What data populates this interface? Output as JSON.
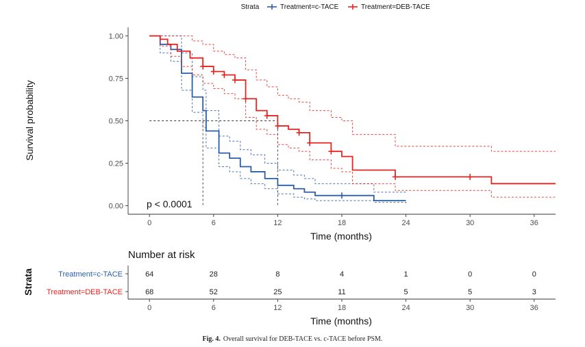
{
  "legend": {
    "title": "Strata",
    "items": [
      {
        "label": "Treatment=c-TACE",
        "color": "#2a5da8"
      },
      {
        "label": "Treatment=DEB-TACE",
        "color": "#e8231f"
      }
    ]
  },
  "chart_data": {
    "type": "line",
    "subtype": "kaplan-meier",
    "xlabel": "Time (months)",
    "ylabel": "Survival probability",
    "xlim": [
      -2,
      38
    ],
    "ylim": [
      -0.05,
      1.05
    ],
    "xticks": [
      0,
      6,
      12,
      18,
      24,
      30,
      36
    ],
    "yticks": [
      0.0,
      0.25,
      0.5,
      0.75,
      1.0
    ],
    "ytick_labels": [
      "0.00",
      "0.25",
      "0.50",
      "0.75",
      "1.00"
    ],
    "grid": false,
    "pvalue": "p < 0.0001",
    "median_reference": {
      "y": 0.5,
      "x": [
        5,
        12
      ]
    },
    "series": [
      {
        "name": "Treatment=c-TACE",
        "color": "#2a5da8",
        "steps": [
          [
            0,
            1.0
          ],
          [
            1,
            0.95
          ],
          [
            2,
            0.92
          ],
          [
            3,
            0.78
          ],
          [
            4,
            0.64
          ],
          [
            5,
            0.56
          ],
          [
            5.3,
            0.44
          ],
          [
            6.5,
            0.31
          ],
          [
            7.5,
            0.28
          ],
          [
            8.5,
            0.23
          ],
          [
            9.5,
            0.2
          ],
          [
            10.8,
            0.16
          ],
          [
            12,
            0.12
          ],
          [
            13.5,
            0.1
          ],
          [
            14.5,
            0.08
          ],
          [
            15.5,
            0.06
          ],
          [
            21,
            0.03
          ],
          [
            24,
            0.03
          ]
        ],
        "upper": [
          [
            0,
            1.0
          ],
          [
            1,
            1.0
          ],
          [
            2,
            1.0
          ],
          [
            3,
            0.9
          ],
          [
            4,
            0.76
          ],
          [
            5,
            0.68
          ],
          [
            5.3,
            0.56
          ],
          [
            6.5,
            0.41
          ],
          [
            7.5,
            0.38
          ],
          [
            8.5,
            0.33
          ],
          [
            9.5,
            0.3
          ],
          [
            10.8,
            0.25
          ],
          [
            12,
            0.21
          ],
          [
            13.5,
            0.18
          ],
          [
            14.5,
            0.16
          ],
          [
            15.5,
            0.13
          ],
          [
            21,
            0.08
          ],
          [
            24,
            0.08
          ]
        ],
        "lower": [
          [
            0,
            1.0
          ],
          [
            1,
            0.9
          ],
          [
            2,
            0.85
          ],
          [
            3,
            0.68
          ],
          [
            4,
            0.55
          ],
          [
            5,
            0.46
          ],
          [
            5.3,
            0.34
          ],
          [
            6.5,
            0.23
          ],
          [
            7.5,
            0.2
          ],
          [
            8.5,
            0.16
          ],
          [
            9.5,
            0.13
          ],
          [
            10.8,
            0.1
          ],
          [
            12,
            0.07
          ],
          [
            13.5,
            0.05
          ],
          [
            14.5,
            0.04
          ],
          [
            15.5,
            0.03
          ],
          [
            21,
            0.02
          ],
          [
            24,
            0.01
          ]
        ],
        "censored": [
          [
            18,
            0.06
          ]
        ]
      },
      {
        "name": "Treatment=DEB-TACE",
        "color": "#e8231f",
        "steps": [
          [
            0,
            1.0
          ],
          [
            1,
            0.98
          ],
          [
            1.7,
            0.95
          ],
          [
            2.6,
            0.91
          ],
          [
            3.8,
            0.87
          ],
          [
            5,
            0.82
          ],
          [
            6,
            0.79
          ],
          [
            7,
            0.77
          ],
          [
            8,
            0.74
          ],
          [
            9,
            0.63
          ],
          [
            10,
            0.56
          ],
          [
            11,
            0.53
          ],
          [
            12,
            0.47
          ],
          [
            13,
            0.45
          ],
          [
            14,
            0.43
          ],
          [
            15,
            0.37
          ],
          [
            17,
            0.32
          ],
          [
            18,
            0.29
          ],
          [
            19,
            0.21
          ],
          [
            23,
            0.17
          ],
          [
            32,
            0.13
          ],
          [
            38,
            0.13
          ]
        ],
        "upper": [
          [
            0,
            1.0
          ],
          [
            1,
            1.0
          ],
          [
            3,
            1.0
          ],
          [
            4,
            0.97
          ],
          [
            5,
            0.95
          ],
          [
            6,
            0.91
          ],
          [
            7,
            0.89
          ],
          [
            8,
            0.87
          ],
          [
            9,
            0.8
          ],
          [
            10,
            0.74
          ],
          [
            11,
            0.7
          ],
          [
            12,
            0.65
          ],
          [
            13,
            0.63
          ],
          [
            14,
            0.61
          ],
          [
            15,
            0.56
          ],
          [
            17,
            0.52
          ],
          [
            18,
            0.5
          ],
          [
            19,
            0.42
          ],
          [
            23,
            0.35
          ],
          [
            32,
            0.32
          ],
          [
            38,
            0.32
          ]
        ],
        "lower": [
          [
            0,
            1.0
          ],
          [
            1,
            0.94
          ],
          [
            2,
            0.88
          ],
          [
            3,
            0.82
          ],
          [
            4,
            0.77
          ],
          [
            5,
            0.72
          ],
          [
            6,
            0.69
          ],
          [
            7,
            0.66
          ],
          [
            8,
            0.63
          ],
          [
            9,
            0.52
          ],
          [
            10,
            0.45
          ],
          [
            11,
            0.42
          ],
          [
            12,
            0.36
          ],
          [
            13,
            0.34
          ],
          [
            14,
            0.32
          ],
          [
            15,
            0.27
          ],
          [
            17,
            0.22
          ],
          [
            18,
            0.2
          ],
          [
            19,
            0.13
          ],
          [
            23,
            0.09
          ],
          [
            32,
            0.05
          ],
          [
            38,
            0.05
          ]
        ],
        "censored": [
          [
            5,
            0.82
          ],
          [
            6,
            0.79
          ],
          [
            7,
            0.77
          ],
          [
            8,
            0.74
          ],
          [
            9,
            0.63
          ],
          [
            11,
            0.53
          ],
          [
            12,
            0.47
          ],
          [
            14,
            0.43
          ],
          [
            15,
            0.37
          ],
          [
            17,
            0.32
          ],
          [
            23,
            0.17
          ],
          [
            30,
            0.17
          ]
        ]
      }
    ]
  },
  "risk_table": {
    "title": "Number at risk",
    "strata_label": "Strata",
    "xlabel": "Time (months)",
    "times": [
      0,
      6,
      12,
      18,
      24,
      30,
      36
    ],
    "rows": [
      {
        "label": "Treatment=c-TACE",
        "color": "#2a5da8",
        "values": [
          64,
          28,
          8,
          4,
          1,
          0,
          0
        ]
      },
      {
        "label": "Treatment=DEB-TACE",
        "color": "#e8231f",
        "values": [
          68,
          52,
          25,
          11,
          5,
          5,
          3
        ]
      }
    ]
  },
  "caption": {
    "label": "Fig. 4.",
    "text": "Overall survival for DEB-TACE vs. c-TACE before PSM."
  }
}
